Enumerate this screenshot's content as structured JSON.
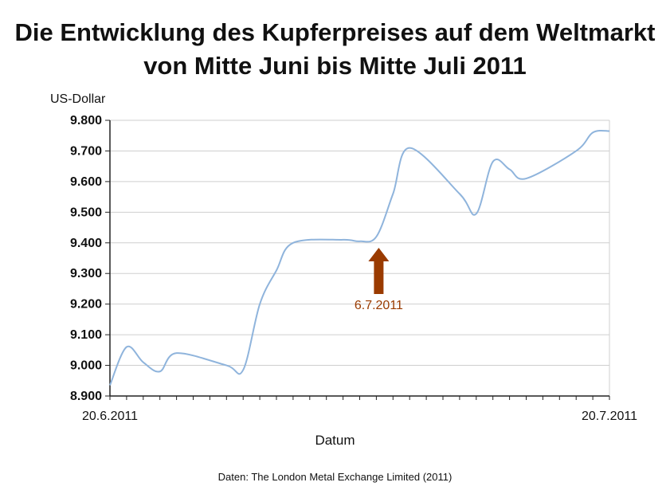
{
  "chart_data": {
    "type": "line",
    "title_line1": "Die Entwicklung des Kupferpreises auf dem Weltmarkt",
    "title_line2": "von Mitte Juni bis Mitte Juli 2011",
    "ylabel": "US-Dollar",
    "xlabel": "Datum",
    "source": "Daten: The London Metal Exchange Limited (2011)",
    "ylim": [
      8900,
      9800
    ],
    "y_ticks": [
      {
        "value": 9800,
        "label": "9.800"
      },
      {
        "value": 9700,
        "label": "9.700"
      },
      {
        "value": 9600,
        "label": "9.600"
      },
      {
        "value": 9500,
        "label": "9.500"
      },
      {
        "value": 9400,
        "label": "9.400"
      },
      {
        "value": 9300,
        "label": "9.300"
      },
      {
        "value": 9200,
        "label": "9.200"
      },
      {
        "value": 9100,
        "label": "9.100"
      },
      {
        "value": 9000,
        "label": "9.000"
      },
      {
        "value": 8900,
        "label": "8.900"
      }
    ],
    "x_range": [
      "2011-06-20",
      "2011-07-20"
    ],
    "x_tick_labels": [
      {
        "x": "2011-06-20",
        "label": "20.6.2011"
      },
      {
        "x": "2011-07-20",
        "label": "20.7.2011"
      }
    ],
    "grid": true,
    "line_color": "#8fb4dc",
    "annotation": {
      "label": "6.7.2011",
      "x": "2011-07-06",
      "color": "#9a3b00"
    },
    "series": [
      {
        "points": [
          {
            "x": "2011-06-20",
            "y": 8935
          },
          {
            "x": "2011-06-21",
            "y": 9060
          },
          {
            "x": "2011-06-22",
            "y": 9010
          },
          {
            "x": "2011-06-23",
            "y": 8980
          },
          {
            "x": "2011-06-24",
            "y": 9040
          },
          {
            "x": "2011-06-27",
            "y": 9000
          },
          {
            "x": "2011-06-28",
            "y": 8985
          },
          {
            "x": "2011-06-29",
            "y": 9200
          },
          {
            "x": "2011-06-30",
            "y": 9310
          },
          {
            "x": "2011-07-01",
            "y": 9400
          },
          {
            "x": "2011-07-04",
            "y": 9410
          },
          {
            "x": "2011-07-05",
            "y": 9405
          },
          {
            "x": "2011-07-06",
            "y": 9420
          },
          {
            "x": "2011-07-07",
            "y": 9560
          },
          {
            "x": "2011-07-08",
            "y": 9710
          },
          {
            "x": "2011-07-11",
            "y": 9560
          },
          {
            "x": "2011-07-12",
            "y": 9495
          },
          {
            "x": "2011-07-13",
            "y": 9665
          },
          {
            "x": "2011-07-14",
            "y": 9640
          },
          {
            "x": "2011-07-15",
            "y": 9610
          },
          {
            "x": "2011-07-18",
            "y": 9700
          },
          {
            "x": "2011-07-19",
            "y": 9760
          },
          {
            "x": "2011-07-20",
            "y": 9765
          }
        ]
      }
    ]
  }
}
